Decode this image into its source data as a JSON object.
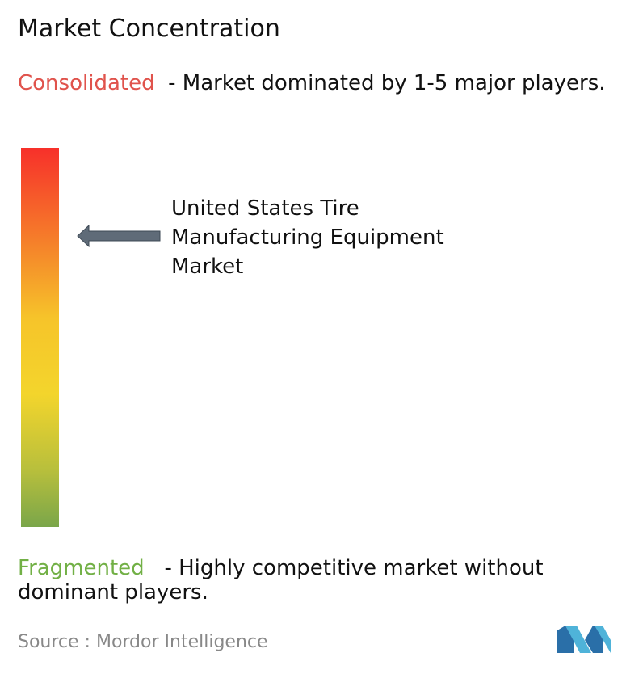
{
  "title": "Market Concentration",
  "consolidated": {
    "label": "Consolidated",
    "description": "- Market dominated by 1-5 major players."
  },
  "market": {
    "label": "United States Tire Manufacturing Equipment Market"
  },
  "fragmented": {
    "label": "Fragmented",
    "description": "- Highly competitive market without dominant players."
  },
  "source": "Source : Mordor Intelligence"
}
